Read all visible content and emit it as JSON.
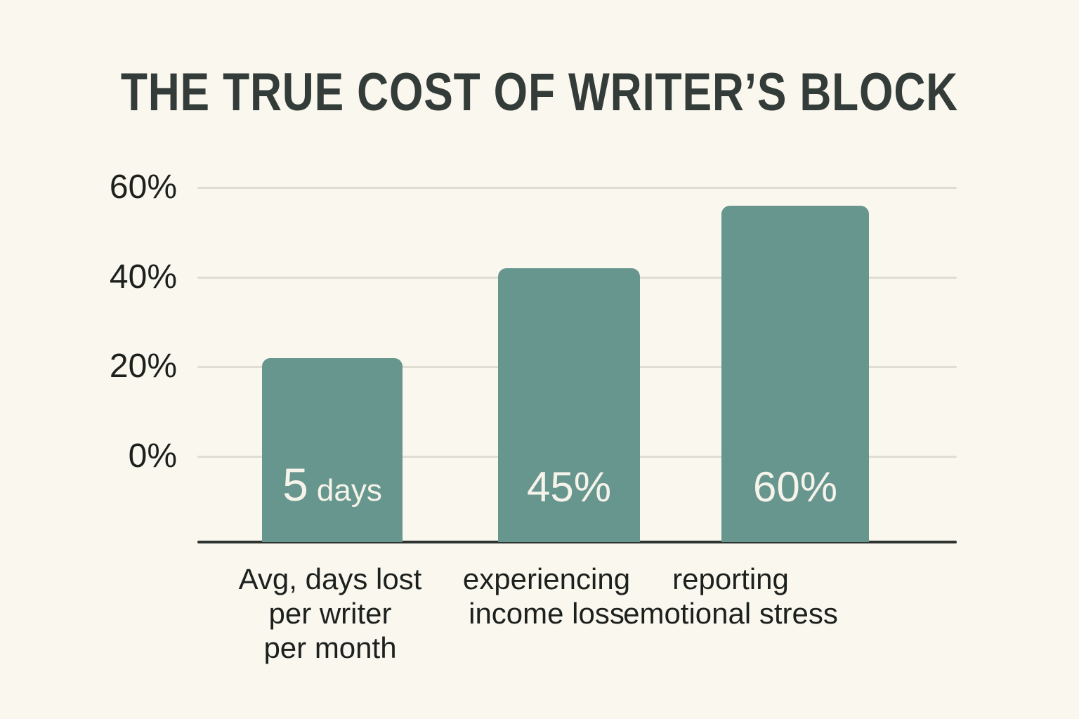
{
  "page": {
    "background_color": "#faf7ee"
  },
  "chart_data": {
    "type": "bar",
    "title": "THE TRUE COST OF WRITER’S BLOCK",
    "xlabel": "",
    "ylabel": "",
    "ylim": [
      0,
      60
    ],
    "grid": true,
    "legend": false,
    "y_axis": {
      "ticks": [
        {
          "label": "60%",
          "value": 60
        },
        {
          "label": "40%",
          "value": 40
        },
        {
          "label": "20%",
          "value": 20
        },
        {
          "label": "0%",
          "value": 0
        }
      ]
    },
    "categories": [
      "Avg, days lost per writer per month",
      "experiencing income loss",
      "reporting emotional stress"
    ],
    "bars": [
      {
        "category_lines": {
          "l1": "Avg, days lost",
          "l2": "per writer",
          "l3": "per month"
        },
        "display_value": "5",
        "display_unit": "days",
        "visual_height_pct": 22
      },
      {
        "category_lines": {
          "l1": "experiencing",
          "l2": "income loss",
          "l3": ""
        },
        "display_value": "45%",
        "display_unit": "",
        "visual_height_pct": 42
      },
      {
        "category_lines": {
          "l1": "reporting",
          "l2": "emotional stress",
          "l3": ""
        },
        "display_value": "60%",
        "display_unit": "",
        "visual_height_pct": 56
      }
    ],
    "colors": {
      "bar": "#67968e",
      "bar_label_text": "#f6f3ea",
      "title": "#333c38",
      "axis_text": "#1d211e",
      "gridline": "#dfddd4",
      "axis_line": "#2c3331",
      "background": "#faf7ee"
    }
  }
}
